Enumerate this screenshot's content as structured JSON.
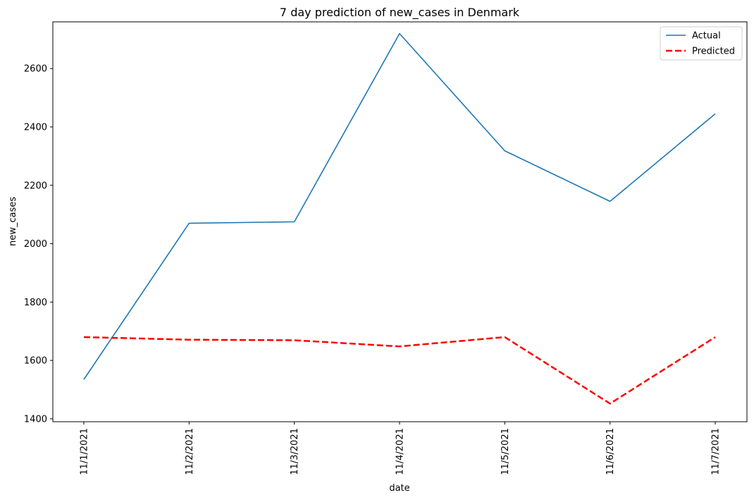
{
  "chart_data": {
    "type": "line",
    "title": "7 day prediction of new_cases in Denmark",
    "xlabel": "date",
    "ylabel": "new_cases",
    "categories": [
      "11/1/2021",
      "11/2/2021",
      "11/3/2021",
      "11/4/2021",
      "11/5/2021",
      "11/6/2021",
      "11/7/2021"
    ],
    "ylim": [
      1390,
      2760
    ],
    "yticks": [
      1400,
      1600,
      1800,
      2000,
      2200,
      2400,
      2600
    ],
    "grid": false,
    "legend_position": "top-right",
    "series": [
      {
        "name": "Actual",
        "color": "#1f77b4",
        "style": "solid",
        "values": [
          1535,
          2070,
          2075,
          2720,
          2318,
          2145,
          2445
        ]
      },
      {
        "name": "Predicted",
        "color": "#ff0000",
        "style": "dashed",
        "values": [
          1680,
          1671,
          1669,
          1648,
          1680,
          1452,
          1680
        ]
      }
    ]
  }
}
